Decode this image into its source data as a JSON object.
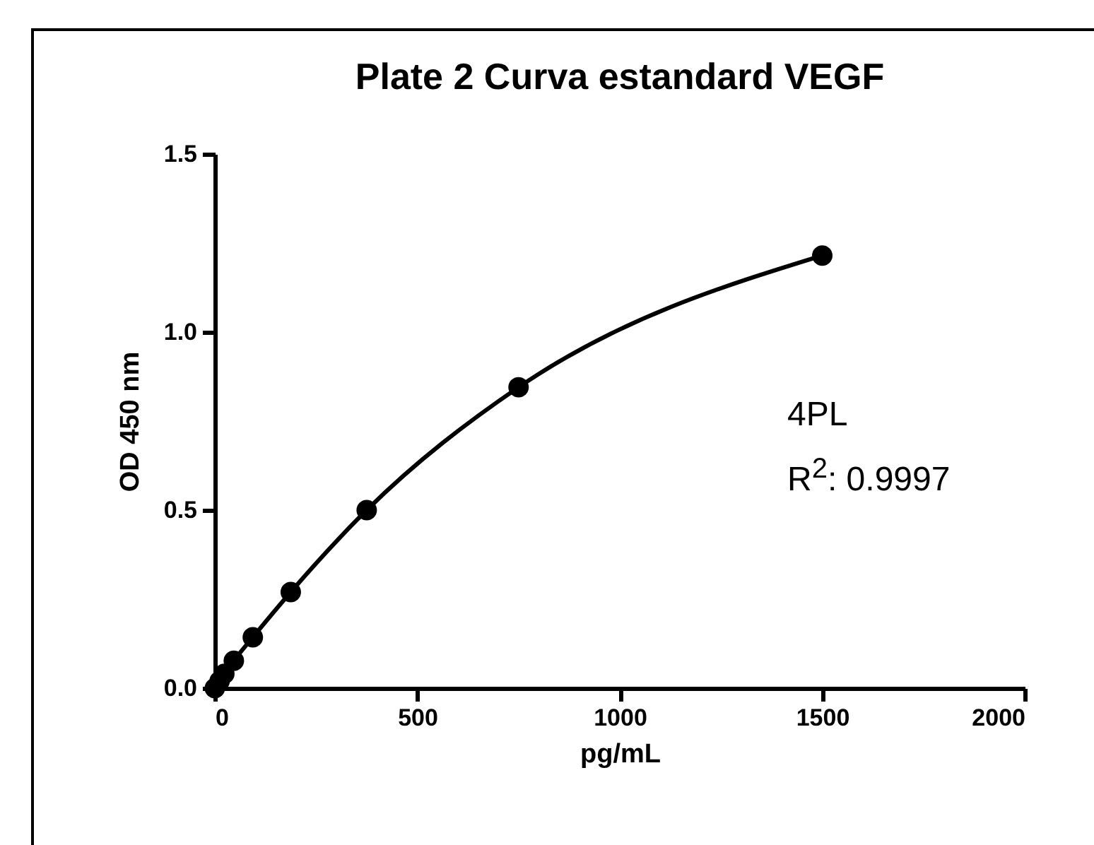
{
  "chart_data": {
    "type": "line",
    "title": "Plate 2 Curva estandard VEGF",
    "xlabel": "pg/mL",
    "ylabel": "OD 450 nm",
    "x": [
      0,
      11.7,
      23.4,
      46.9,
      93.75,
      187.5,
      375,
      750,
      1500
    ],
    "series": [
      {
        "color": "#000000",
        "values": [
          0,
          0.02,
          0.04,
          0.077,
          0.143,
          0.27,
          0.5,
          0.845,
          1.215
        ]
      }
    ],
    "xlim": [
      0,
      2000
    ],
    "xticks": [
      0,
      500,
      1000,
      1500,
      2000
    ],
    "ylim": [
      0,
      1.5
    ],
    "yticks": [
      {
        "value": 0,
        "label": "0.0"
      },
      {
        "value": 0.5,
        "label": "0.5"
      },
      {
        "value": 1,
        "label": "1.0"
      },
      {
        "value": 1.5,
        "label": "1.5"
      }
    ],
    "marker": "circle",
    "line_style": "solid",
    "grid": false,
    "annotations": [
      "4PL",
      "R$^{2}$: 0.9997"
    ]
  }
}
